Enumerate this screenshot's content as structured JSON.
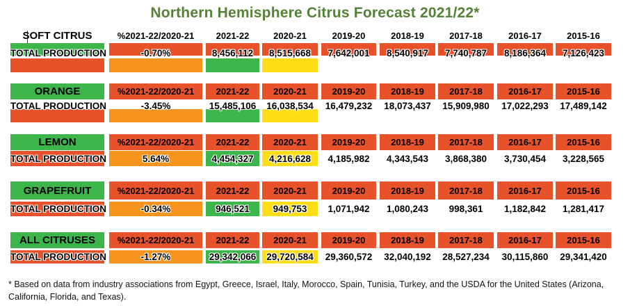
{
  "title": "Northern Hemisphere Citrus Forecast 2021/22*",
  "columns": [
    "%2021-22/2020-21",
    "2021-22",
    "2020-21",
    "2019-20",
    "2018-19",
    "2017-18",
    "2016-17",
    "2015-16"
  ],
  "row_label": "TOTAL PRODUCTION",
  "sections": [
    {
      "name": "SOFT CITRUS",
      "values": [
        "-0.70%",
        "8,456,112",
        "8,515,668",
        "7,642,001",
        "8,540,917",
        "7,740,787",
        "8,186,364",
        "7,126,423"
      ]
    },
    {
      "name": "ORANGE",
      "values": [
        "-3.45%",
        "15,485,106",
        "16,038,534",
        "16,479,232",
        "18,073,437",
        "15,909,980",
        "17,022,293",
        "17,489,142"
      ]
    },
    {
      "name": "LEMON",
      "values": [
        "5.64%",
        "4,454,327",
        "4,216,628",
        "4,185,982",
        "4,343,543",
        "3,868,380",
        "3,730,454",
        "3,228,565"
      ]
    },
    {
      "name": "GRAPEFRUIT",
      "values": [
        "-0.34%",
        "946,521",
        "949,753",
        "1,071,942",
        "1,080,243",
        "998,361",
        "1,182,842",
        "1,281,417"
      ]
    },
    {
      "name": "ALL CITRUSES",
      "values": [
        "-1.27%",
        "29,342,066",
        "29,720,584",
        "29,360,572",
        "32,040,192",
        "28,527,234",
        "30,115,860",
        "29,341,420"
      ]
    }
  ],
  "footnote": "* Based on data from industry associations from Egypt, Greece, Israel, Italy, Morocco, Spain, Tunisia, Turkey, and the USDA for the United States (Arizona, California, Florida, and Texas).",
  "colors": {
    "title_green": "#538135",
    "band_green": "#3CB54A",
    "band_red": "#E8522B",
    "band_orange": "#F7941E",
    "band_yellow": "#FFDE17"
  },
  "chart_data": {
    "type": "table",
    "title": "Northern Hemisphere Citrus Forecast 2021/22*",
    "columns": [
      "%2021-22/2020-21",
      "2021-22",
      "2020-21",
      "2019-20",
      "2018-19",
      "2017-18",
      "2016-17",
      "2015-16"
    ],
    "metric": "TOTAL PRODUCTION",
    "rows": [
      {
        "category": "SOFT CITRUS",
        "pct_change": -0.7,
        "values": [
          8456112,
          8515668,
          7642001,
          8540917,
          7740787,
          8186364,
          7126423
        ]
      },
      {
        "category": "ORANGE",
        "pct_change": -3.45,
        "values": [
          15485106,
          16038534,
          16479232,
          18073437,
          15909980,
          17022293,
          17489142
        ]
      },
      {
        "category": "LEMON",
        "pct_change": 5.64,
        "values": [
          4454327,
          4216628,
          4185982,
          4343543,
          3868380,
          3730454,
          3228565
        ]
      },
      {
        "category": "GRAPEFRUIT",
        "pct_change": -0.34,
        "values": [
          946521,
          949753,
          1071942,
          1080243,
          998361,
          1182842,
          1281417
        ]
      },
      {
        "category": "ALL CITRUSES",
        "pct_change": -1.27,
        "values": [
          29342066,
          29720584,
          29360572,
          32040192,
          28527234,
          30115860,
          29341420
        ]
      }
    ],
    "cell_highlights": {
      "category_header": "green",
      "year_headers": "orange-red",
      "pct_change_cell": "orange",
      "2021-22_cell": "green",
      "2020-21_cell": "yellow",
      "row_label_cell": "orange-red"
    }
  }
}
